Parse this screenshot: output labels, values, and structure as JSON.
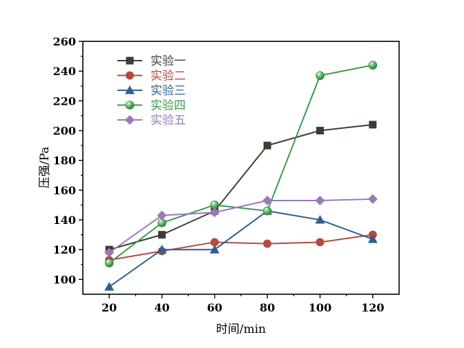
{
  "chart_data": {
    "type": "line",
    "xlabel": "时间/min",
    "ylabel": "压强/Pa",
    "x": [
      20,
      40,
      60,
      80,
      100,
      120
    ],
    "xlim": [
      10,
      130
    ],
    "ylim": [
      90,
      260
    ],
    "xticks": [
      20,
      40,
      60,
      80,
      100,
      120
    ],
    "yticks": [
      100,
      120,
      140,
      160,
      180,
      200,
      220,
      240,
      260
    ],
    "grid": false,
    "legend_position": "top-left",
    "series": [
      {
        "name": "实验一",
        "color": "#3d3d33",
        "marker": "square-icon",
        "values": [
          120,
          130,
          146,
          190,
          200,
          204
        ]
      },
      {
        "name": "实验二",
        "color": "#b34a3e",
        "marker": "circle-icon",
        "values": [
          113,
          119,
          125,
          124,
          125,
          130
        ]
      },
      {
        "name": "实验三",
        "color": "#2f5f8f",
        "marker": "triangle-icon",
        "values": [
          95,
          120,
          120,
          146,
          140,
          127
        ]
      },
      {
        "name": "实验四",
        "color": "#3a9a4a",
        "marker": "sphere-icon",
        "values": [
          111,
          138,
          150,
          146,
          237,
          244
        ]
      },
      {
        "name": "实验五",
        "color": "#9a79b8",
        "marker": "diamond-icon",
        "values": [
          118,
          143,
          145,
          153,
          153,
          154
        ]
      }
    ]
  }
}
